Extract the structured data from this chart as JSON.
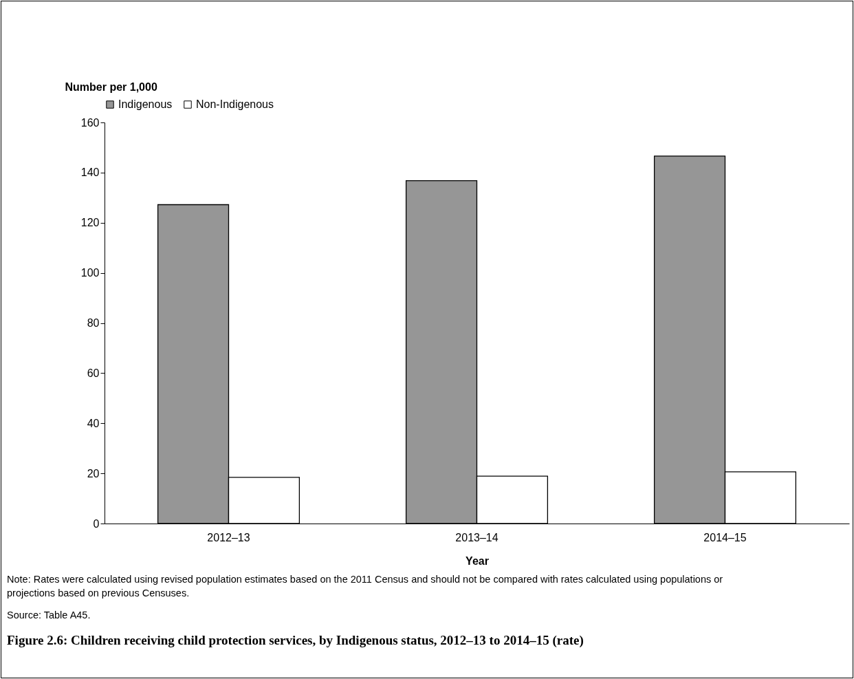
{
  "chart_data": {
    "type": "bar",
    "title": "Figure 2.6: Children receiving child protection services, by Indigenous status, 2012–13 to 2014–15 (rate)",
    "xlabel": "Year",
    "ylabel": "Number per 1,000",
    "categories": [
      "2012–13",
      "2013–14",
      "2014–15"
    ],
    "series": [
      {
        "name": "Indigenous",
        "color": "#969696",
        "values": [
          127.2,
          136.8,
          146.6
        ]
      },
      {
        "name": "Non-Indigenous",
        "color": "#ffffff",
        "values": [
          18.4,
          18.9,
          20.6
        ]
      }
    ],
    "ylim": [
      0,
      160
    ],
    "yticks": [
      0,
      20,
      40,
      60,
      80,
      100,
      120,
      140,
      160
    ],
    "grid": false,
    "legend": "top",
    "annotations": [
      "Note: Rates were calculated using revised population estimates based on the 2011 Census and should not be compared with rates calculated using populations or projections based on previous Censuses.",
      "Source: Table A45."
    ]
  }
}
